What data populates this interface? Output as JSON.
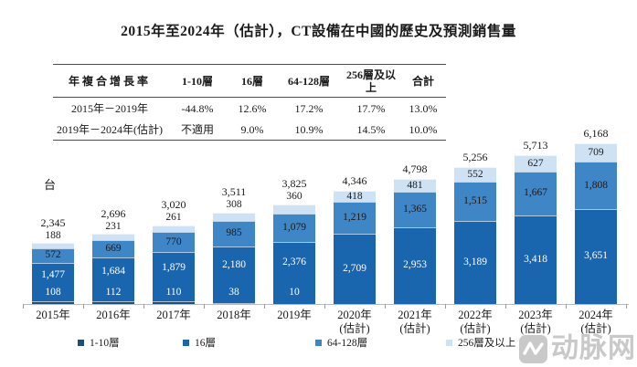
{
  "title": "2015年至2024年（估計），CT設備在中國的歷史及預測銷售量",
  "table": {
    "headers": [
      "年複合增長率",
      "1-10層",
      "16層",
      "64-128層",
      "256層及以上",
      "合計"
    ],
    "rows": [
      {
        "label": "2015年－2019年",
        "values": [
          "-44.8%",
          "12.6%",
          "17.2%",
          "17.7%",
          "13.0%"
        ]
      },
      {
        "label": "2019年－2024年(估計)",
        "values": [
          "不適用",
          "9.0%",
          "10.9%",
          "14.5%",
          "10.0%"
        ]
      }
    ]
  },
  "chart_data": {
    "type": "bar",
    "stacked": true,
    "title": "2015年至2024年（估計），CT設備在中國的歷史及預測銷售量",
    "unit_label": "台",
    "categories": [
      {
        "label": "2015年",
        "sub": ""
      },
      {
        "label": "2016年",
        "sub": ""
      },
      {
        "label": "2017年",
        "sub": ""
      },
      {
        "label": "2018年",
        "sub": ""
      },
      {
        "label": "2019年",
        "sub": ""
      },
      {
        "label": "2020年",
        "sub": "(估計)"
      },
      {
        "label": "2021年",
        "sub": "(估計)"
      },
      {
        "label": "2022年",
        "sub": "(估計)"
      },
      {
        "label": "2023年",
        "sub": "(估計)"
      },
      {
        "label": "2024年",
        "sub": "(估計)"
      }
    ],
    "series": [
      {
        "name": "1-10層",
        "color": "#1f4e79",
        "values": [
          108,
          112,
          110,
          38,
          10,
          null,
          null,
          null,
          null,
          null
        ]
      },
      {
        "name": "16層",
        "color": "#1966af",
        "values": [
          1477,
          1684,
          1879,
          2180,
          2376,
          2709,
          2953,
          3189,
          3418,
          3651
        ]
      },
      {
        "name": "64-128層",
        "color": "#3f86c7",
        "values": [
          572,
          669,
          770,
          985,
          1079,
          1219,
          1365,
          1515,
          1667,
          1808
        ]
      },
      {
        "name": "256層及以上",
        "color": "#cfe2f3",
        "values": [
          188,
          231,
          261,
          308,
          360,
          418,
          481,
          552,
          627,
          709
        ]
      }
    ],
    "totals": [
      2345,
      2696,
      3020,
      3511,
      3825,
      4346,
      4798,
      5256,
      5713,
      6168
    ],
    "ylim": [
      0,
      6500
    ],
    "grid": false,
    "legend_position": "bottom"
  },
  "legend": [
    "1-10層",
    "16層",
    "64-128層",
    "256層及以上"
  ],
  "watermark": {
    "text": "动脉网"
  }
}
